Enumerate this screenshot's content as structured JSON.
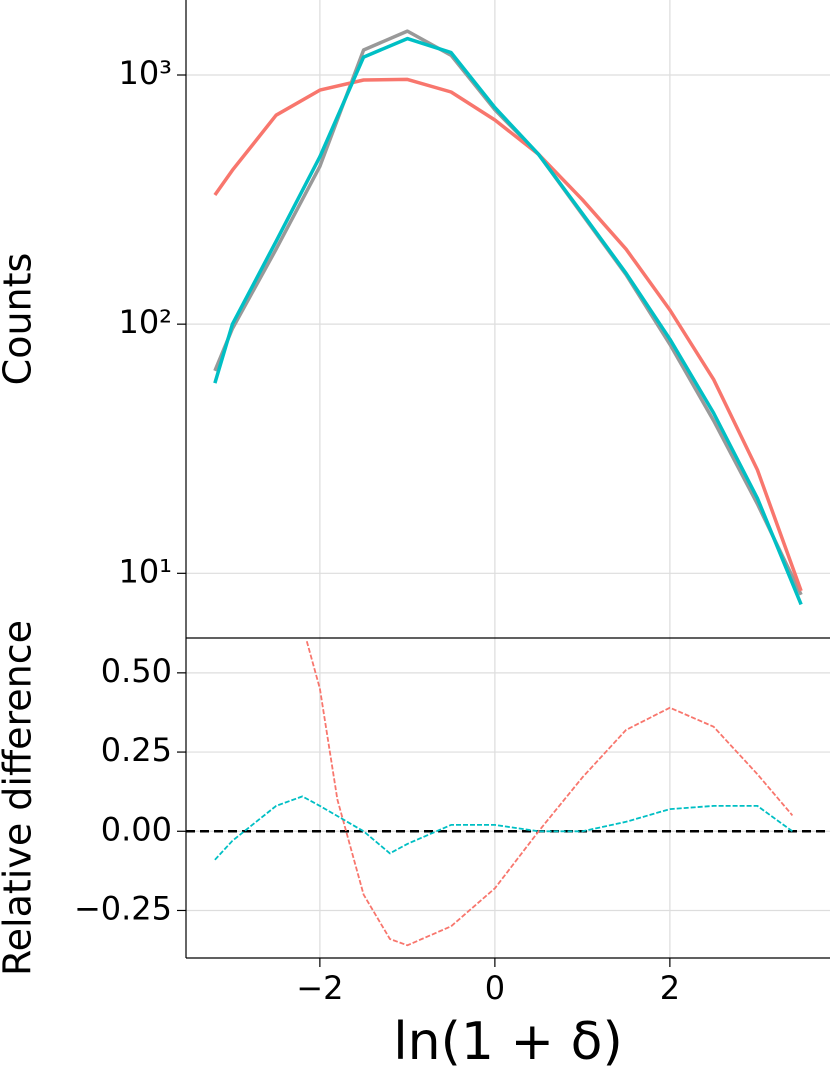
{
  "chart_data": [
    {
      "type": "line",
      "ylabel": "Counts",
      "log_y": true,
      "grid": true,
      "ylim": [
        5.5,
        2000
      ],
      "yticks": [
        {
          "value": 10,
          "label": "10¹"
        },
        {
          "value": 100,
          "label": "10²"
        },
        {
          "value": 1000,
          "label": "10³"
        }
      ],
      "x": [
        -3.2,
        -3.0,
        -2.5,
        -2.0,
        -1.5,
        -1.0,
        -0.5,
        0,
        0.5,
        1.0,
        1.5,
        2.0,
        2.5,
        3.0,
        3.5
      ],
      "series": [
        {
          "color": "#999999",
          "values": [
            65,
            96,
            200,
            430,
            1260,
            1500,
            1200,
            725,
            480,
            275,
            158,
            83,
            41,
            19,
            8.2
          ]
        },
        {
          "color": "#f8766d",
          "values": [
            330,
            415,
            690,
            870,
            955,
            960,
            855,
            660,
            480,
            316,
            200,
            114,
            60,
            26,
            8.5
          ]
        },
        {
          "color": "#00bfc4",
          "values": [
            58,
            100,
            215,
            470,
            1180,
            1400,
            1230,
            740,
            480,
            278,
            160,
            87,
            44,
            20,
            7.5
          ]
        }
      ]
    },
    {
      "type": "line",
      "ylabel": "Relative difference",
      "xlabel": "ln(1 + δ)",
      "grid": true,
      "xlim": [
        -3.53,
        3.83
      ],
      "xticks": [
        {
          "value": -2,
          "label": "−2"
        },
        0,
        2
      ],
      "ylim": [
        -0.4,
        0.61
      ],
      "yticks": [
        {
          "value": -0.25,
          "label": "−0.25"
        },
        {
          "value": 0,
          "label": "0.00"
        },
        0.25,
        {
          "value": 0.5,
          "label": "0.50"
        }
      ],
      "hline": 0,
      "series": [
        {
          "color": "#f8766d",
          "x": [
            -2.15,
            -2.0,
            -1.8,
            -1.5,
            -1.2,
            -1.0,
            -0.5,
            0,
            0.5,
            1.0,
            1.5,
            2.0,
            2.5,
            3.0,
            3.4
          ],
          "values": [
            0.6,
            0.45,
            0.1,
            -0.2,
            -0.34,
            -0.36,
            -0.3,
            -0.18,
            0.0,
            0.17,
            0.32,
            0.39,
            0.33,
            0.18,
            0.05
          ]
        },
        {
          "color": "#00bfc4",
          "x": [
            -3.2,
            -3.0,
            -2.5,
            -2.2,
            -2.0,
            -1.5,
            -1.2,
            -1.0,
            -0.5,
            0,
            0.5,
            1.0,
            1.5,
            2.0,
            2.5,
            3.0,
            3.4
          ],
          "values": [
            -0.09,
            -0.03,
            0.08,
            0.11,
            0.08,
            0.0,
            -0.07,
            -0.04,
            0.02,
            0.02,
            0.0,
            0.0,
            0.03,
            0.07,
            0.08,
            0.08,
            0.0
          ]
        }
      ]
    }
  ]
}
